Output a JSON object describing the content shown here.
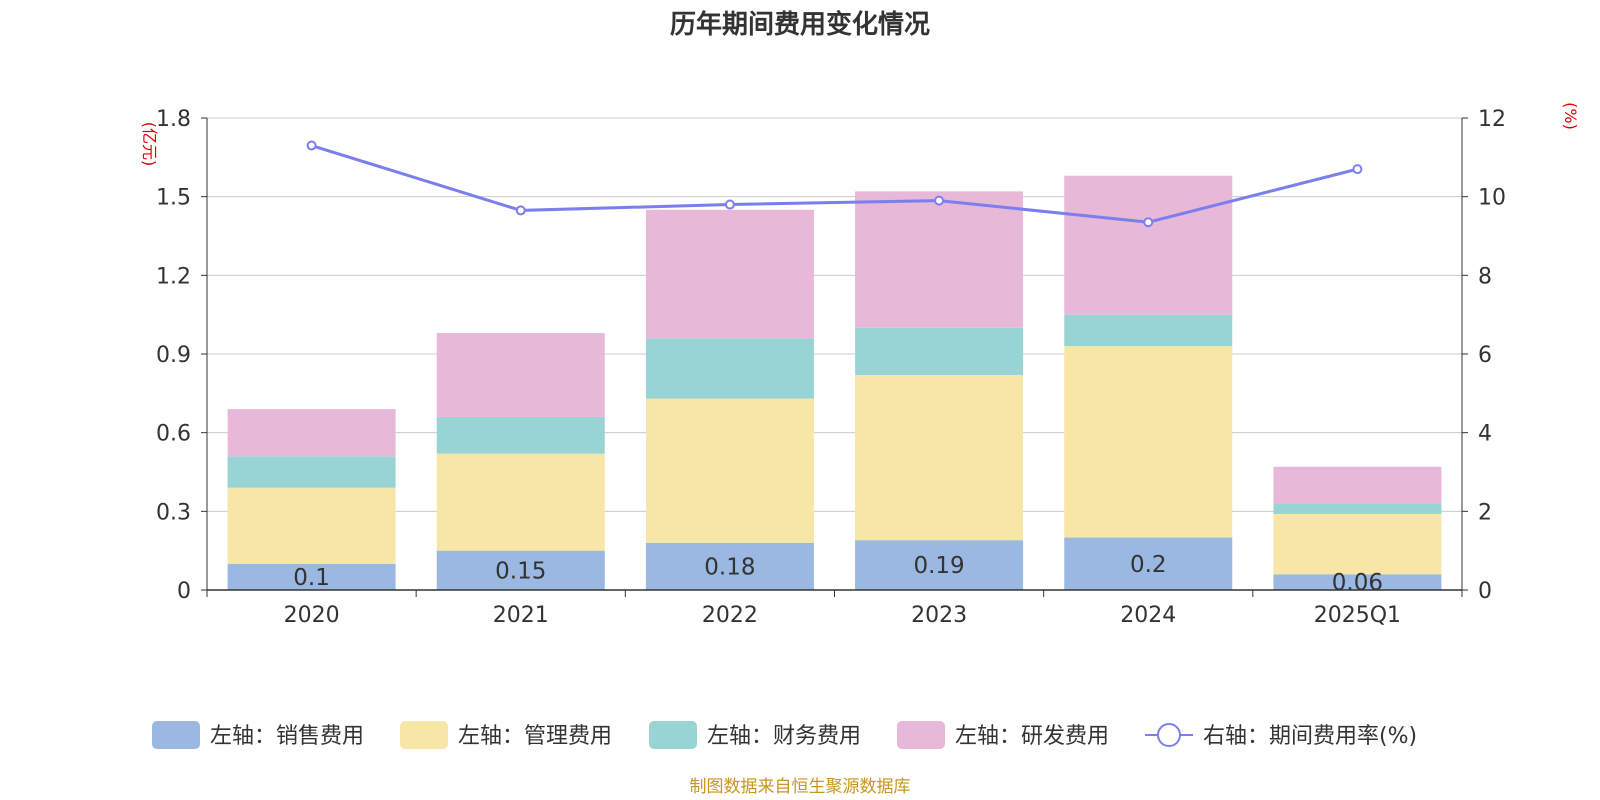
{
  "chart_data": {
    "type": "bar",
    "title": "历年期间费用变化情况",
    "categories": [
      "2020",
      "2021",
      "2022",
      "2023",
      "2024",
      "2025Q1"
    ],
    "left_axis": {
      "unit": "(亿元)",
      "ylim": [
        0,
        1.8
      ],
      "ticks": [
        "0",
        "0.3",
        "0.6",
        "0.9",
        "1.2",
        "1.5",
        "1.8"
      ],
      "tick_values": [
        0,
        0.3,
        0.6,
        0.9,
        1.2,
        1.5,
        1.8
      ]
    },
    "right_axis": {
      "unit": "(%)",
      "ylim": [
        0,
        12
      ],
      "ticks": [
        "0",
        "2",
        "4",
        "6",
        "8",
        "10",
        "12"
      ],
      "tick_values": [
        0,
        2,
        4,
        6,
        8,
        10,
        12
      ]
    },
    "series": [
      {
        "name": "左轴：销售费用",
        "axis": "left",
        "kind": "bar",
        "color": "#9bb8e2",
        "values": [
          0.1,
          0.15,
          0.18,
          0.19,
          0.2,
          0.06
        ],
        "labels": [
          "0.1",
          "0.15",
          "0.18",
          "0.19",
          "0.2",
          "0.06"
        ]
      },
      {
        "name": "左轴：管理费用",
        "axis": "left",
        "kind": "bar",
        "color": "#f7e6a6",
        "values": [
          0.29,
          0.37,
          0.55,
          0.63,
          0.73,
          0.23
        ]
      },
      {
        "name": "左轴：财务费用",
        "axis": "left",
        "kind": "bar",
        "color": "#99d4d4",
        "values": [
          0.12,
          0.14,
          0.23,
          0.18,
          0.12,
          0.04
        ]
      },
      {
        "name": "左轴：研发费用",
        "axis": "left",
        "kind": "bar",
        "color": "#e8b8d8",
        "values": [
          0.18,
          0.32,
          0.49,
          0.52,
          0.53,
          0.14
        ]
      },
      {
        "name": "右轴：期间费用率(%)",
        "axis": "right",
        "kind": "line",
        "color": "#7b7fee",
        "values": [
          11.3,
          9.65,
          9.8,
          9.9,
          9.35,
          10.7
        ]
      }
    ]
  },
  "footer": {
    "source": "制图数据来自恒生聚源数据库"
  }
}
